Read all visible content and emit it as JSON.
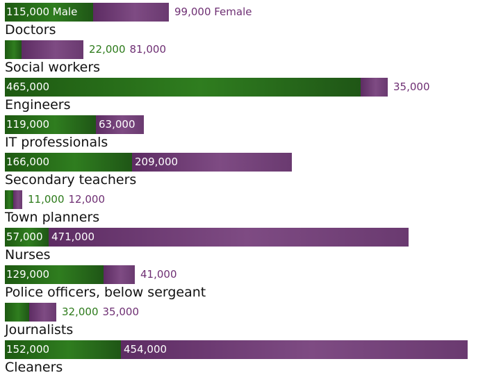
{
  "chart_data": {
    "type": "bar",
    "categories": [
      "Doctors",
      "Social workers",
      "Engineers",
      "IT professionals",
      "Secondary teachers",
      "Town planners",
      "Nurses",
      "Police officers, below sergeant",
      "Journalists",
      "Cleaners"
    ],
    "series": [
      {
        "name": "Male",
        "values": [
          115000,
          22000,
          465000,
          119000,
          166000,
          11000,
          57000,
          129000,
          32000,
          152000
        ],
        "labels": [
          "115,000 Male",
          "22,000",
          "465,000",
          "119,000",
          "166,000",
          "11,000",
          "57,000",
          "129,000",
          "32,000",
          "152,000"
        ],
        "color": "#2f7d1f"
      },
      {
        "name": "Female",
        "values": [
          99000,
          81000,
          35000,
          63000,
          209000,
          12000,
          471000,
          41000,
          35000,
          454000
        ],
        "labels": [
          "99,000 Female",
          "81,000",
          "35,000",
          "63,000",
          "209,000",
          "12,000",
          "471,000",
          "41,000",
          "35,000",
          "454,000"
        ],
        "color": "#7e4b83"
      }
    ],
    "stacked": true,
    "orientation": "horizontal",
    "title": "",
    "xlabel": "",
    "ylabel": "",
    "grid": false,
    "legend": "inline"
  }
}
